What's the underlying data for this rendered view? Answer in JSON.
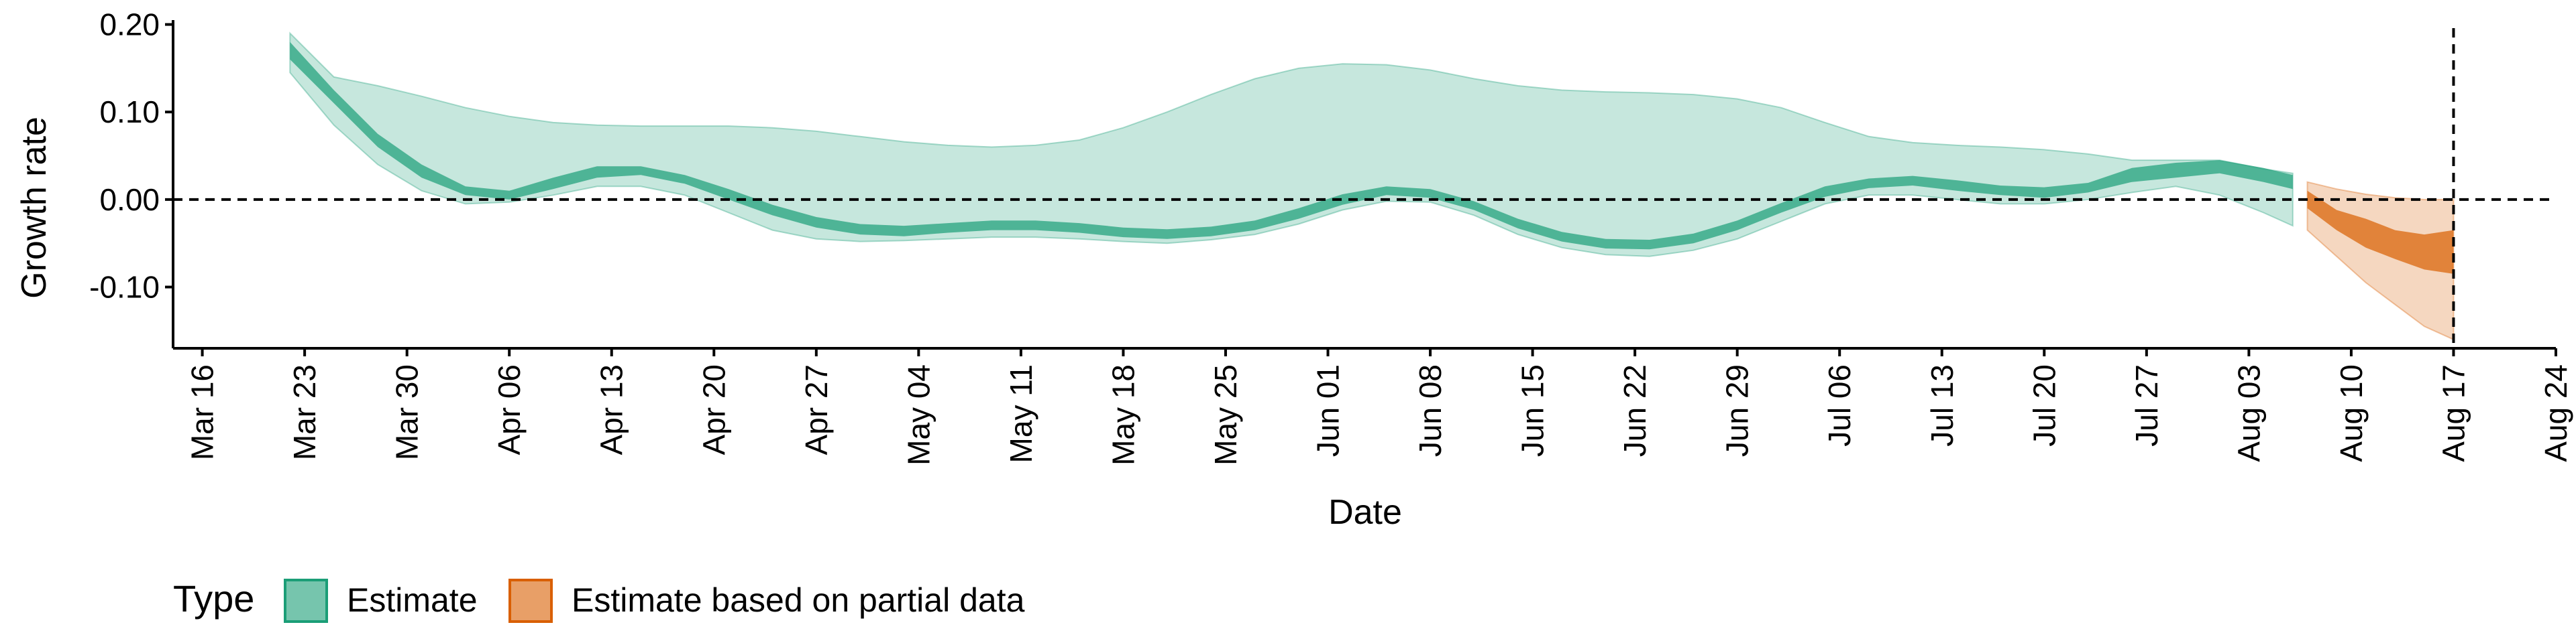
{
  "chart_data": {
    "type": "area",
    "xlabel": "Date",
    "ylabel": "Growth rate",
    "xlim": [
      "2020-03-14",
      "2020-08-24"
    ],
    "ylim": [
      -0.17,
      0.205
    ],
    "x_tick_labels": [
      {
        "date": "2020-03-16",
        "label": "Mar 16"
      },
      {
        "date": "2020-03-23",
        "label": "Mar 23"
      },
      {
        "date": "2020-03-30",
        "label": "Mar 30"
      },
      {
        "date": "2020-04-06",
        "label": "Apr 06"
      },
      {
        "date": "2020-04-13",
        "label": "Apr 13"
      },
      {
        "date": "2020-04-20",
        "label": "Apr 20"
      },
      {
        "date": "2020-04-27",
        "label": "Apr 27"
      },
      {
        "date": "2020-05-04",
        "label": "May 04"
      },
      {
        "date": "2020-05-11",
        "label": "May 11"
      },
      {
        "date": "2020-05-18",
        "label": "May 18"
      },
      {
        "date": "2020-05-25",
        "label": "May 25"
      },
      {
        "date": "2020-06-01",
        "label": "Jun 01"
      },
      {
        "date": "2020-06-08",
        "label": "Jun 08"
      },
      {
        "date": "2020-06-15",
        "label": "Jun 15"
      },
      {
        "date": "2020-06-22",
        "label": "Jun 22"
      },
      {
        "date": "2020-06-29",
        "label": "Jun 29"
      },
      {
        "date": "2020-07-06",
        "label": "Jul 06"
      },
      {
        "date": "2020-07-13",
        "label": "Jul 13"
      },
      {
        "date": "2020-07-20",
        "label": "Jul 20"
      },
      {
        "date": "2020-07-27",
        "label": "Jul 27"
      },
      {
        "date": "2020-08-03",
        "label": "Aug 03"
      },
      {
        "date": "2020-08-10",
        "label": "Aug 10"
      },
      {
        "date": "2020-08-17",
        "label": "Aug 17"
      },
      {
        "date": "2020-08-24",
        "label": "Aug 24"
      }
    ],
    "y_tick_labels": [
      {
        "value": 0.2,
        "label": "0.20"
      },
      {
        "value": 0.1,
        "label": "0.10"
      },
      {
        "value": 0.0,
        "label": "0.00"
      },
      {
        "value": -0.1,
        "label": "-0.10"
      }
    ],
    "reference_lines": {
      "horizontal_y": 0.0,
      "vertical_date": "2020-08-17",
      "style": "dashed"
    },
    "grid": false,
    "legend": {
      "title": "Type",
      "position": "bottom-left",
      "entries": [
        {
          "label": "Estimate",
          "color": "#1b9e77"
        },
        {
          "label": "Estimate based on partial data",
          "color": "#d95f02"
        }
      ]
    },
    "series": [
      {
        "name": "Estimate",
        "color": "#1b9e77",
        "x": [
          "2020-03-22",
          "2020-03-25",
          "2020-03-28",
          "2020-03-31",
          "2020-04-03",
          "2020-04-06",
          "2020-04-09",
          "2020-04-12",
          "2020-04-15",
          "2020-04-18",
          "2020-04-21",
          "2020-04-24",
          "2020-04-27",
          "2020-04-30",
          "2020-05-03",
          "2020-05-06",
          "2020-05-09",
          "2020-05-12",
          "2020-05-15",
          "2020-05-18",
          "2020-05-21",
          "2020-05-24",
          "2020-05-27",
          "2020-05-30",
          "2020-06-02",
          "2020-06-05",
          "2020-06-08",
          "2020-06-11",
          "2020-06-14",
          "2020-06-17",
          "2020-06-20",
          "2020-06-23",
          "2020-06-26",
          "2020-06-29",
          "2020-07-02",
          "2020-07-05",
          "2020-07-08",
          "2020-07-11",
          "2020-07-14",
          "2020-07-17",
          "2020-07-20",
          "2020-07-23",
          "2020-07-26",
          "2020-07-29",
          "2020-08-01",
          "2020-08-04",
          "2020-08-06"
        ],
        "lower_90": [
          0.145,
          0.085,
          0.04,
          0.01,
          -0.005,
          -0.003,
          0.005,
          0.015,
          0.015,
          0.005,
          -0.015,
          -0.035,
          -0.045,
          -0.048,
          -0.047,
          -0.045,
          -0.043,
          -0.043,
          -0.045,
          -0.048,
          -0.05,
          -0.046,
          -0.04,
          -0.028,
          -0.012,
          -0.002,
          -0.003,
          -0.018,
          -0.04,
          -0.055,
          -0.063,
          -0.065,
          -0.058,
          -0.045,
          -0.025,
          -0.005,
          0.005,
          0.005,
          0.0,
          -0.005,
          -0.005,
          0.0,
          0.008,
          0.015,
          0.005,
          -0.015,
          -0.03
        ],
        "upper_90": [
          0.19,
          0.14,
          0.13,
          0.118,
          0.105,
          0.095,
          0.088,
          0.085,
          0.084,
          0.084,
          0.084,
          0.082,
          0.078,
          0.072,
          0.066,
          0.062,
          0.06,
          0.062,
          0.068,
          0.082,
          0.1,
          0.12,
          0.138,
          0.15,
          0.155,
          0.154,
          0.148,
          0.138,
          0.13,
          0.125,
          0.123,
          0.122,
          0.12,
          0.115,
          0.105,
          0.088,
          0.072,
          0.065,
          0.062,
          0.06,
          0.057,
          0.052,
          0.045,
          0.045,
          0.045,
          0.035,
          0.03
        ],
        "lower_50": [
          0.16,
          0.11,
          0.06,
          0.025,
          0.005,
          0.0,
          0.012,
          0.025,
          0.028,
          0.018,
          0.0,
          -0.018,
          -0.032,
          -0.04,
          -0.042,
          -0.038,
          -0.035,
          -0.035,
          -0.038,
          -0.043,
          -0.045,
          -0.042,
          -0.035,
          -0.022,
          -0.006,
          0.005,
          0.002,
          -0.012,
          -0.033,
          -0.048,
          -0.056,
          -0.057,
          -0.05,
          -0.035,
          -0.015,
          0.003,
          0.013,
          0.016,
          0.01,
          0.005,
          0.002,
          0.008,
          0.02,
          0.025,
          0.03,
          0.02,
          0.012
        ],
        "upper_50": [
          0.18,
          0.125,
          0.075,
          0.04,
          0.015,
          0.01,
          0.025,
          0.038,
          0.038,
          0.028,
          0.012,
          -0.006,
          -0.02,
          -0.028,
          -0.03,
          -0.027,
          -0.024,
          -0.024,
          -0.027,
          -0.032,
          -0.034,
          -0.031,
          -0.024,
          -0.01,
          0.006,
          0.015,
          0.012,
          -0.002,
          -0.022,
          -0.037,
          -0.045,
          -0.046,
          -0.039,
          -0.024,
          -0.004,
          0.015,
          0.024,
          0.027,
          0.022,
          0.016,
          0.014,
          0.019,
          0.036,
          0.042,
          0.045,
          0.036,
          0.028
        ]
      },
      {
        "name": "Estimate based on partial data",
        "color": "#d95f02",
        "x": [
          "2020-08-07",
          "2020-08-09",
          "2020-08-11",
          "2020-08-13",
          "2020-08-15",
          "2020-08-17"
        ],
        "lower_90": [
          -0.035,
          -0.065,
          -0.095,
          -0.12,
          -0.145,
          -0.16
        ],
        "upper_90": [
          0.02,
          0.012,
          0.006,
          0.002,
          0.0,
          0.0
        ],
        "lower_50": [
          -0.01,
          -0.035,
          -0.055,
          -0.068,
          -0.08,
          -0.085
        ],
        "upper_50": [
          0.01,
          -0.012,
          -0.022,
          -0.035,
          -0.04,
          -0.035
        ]
      }
    ]
  }
}
